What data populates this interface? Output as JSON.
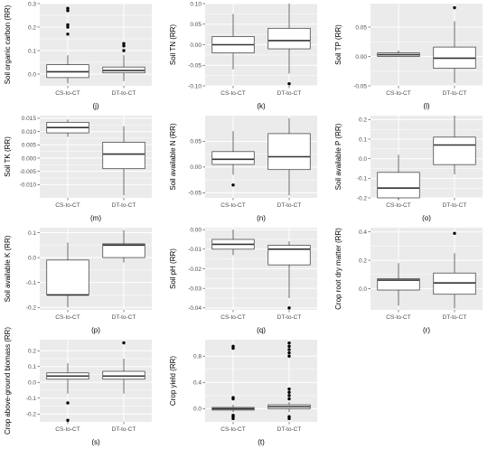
{
  "figure": {
    "background": "#ffffff",
    "panel_background": "#ebebeb",
    "grid_color": "#ffffff",
    "box_fill": "#ffffff",
    "box_stroke": "#333333"
  },
  "chart_data": [
    {
      "type": "boxplot",
      "panel_label": "(j)",
      "ylabel": "Soil organic carbon (RR)",
      "categories": [
        "CS-to-CT",
        "DT-to-CT"
      ],
      "ylim": [
        -0.05,
        0.3
      ],
      "yticks": [
        0.0,
        0.1,
        0.2,
        0.3
      ],
      "ytick_labels": [
        "0.0",
        "0.1",
        "0.2",
        "0.3"
      ],
      "series": [
        {
          "category": "CS-to-CT",
          "whisker_low": -0.04,
          "q1": -0.015,
          "median": 0.01,
          "q3": 0.04,
          "whisker_high": 0.08,
          "outliers": [
            0.17,
            0.2,
            0.21,
            0.27,
            0.28
          ]
        },
        {
          "category": "DT-to-CT",
          "whisker_low": -0.03,
          "q1": 0.005,
          "median": 0.015,
          "q3": 0.03,
          "whisker_high": 0.08,
          "outliers": [
            0.1,
            0.12,
            0.13
          ]
        }
      ]
    },
    {
      "type": "boxplot",
      "panel_label": "(k)",
      "ylabel": "Soil TN (RR)",
      "categories": [
        "CS-to-CT",
        "DT-to-CT"
      ],
      "ylim": [
        -0.1,
        0.1
      ],
      "yticks": [
        -0.1,
        -0.05,
        0.0,
        0.05,
        0.1
      ],
      "ytick_labels": [
        "-0.10",
        "-0.05",
        "0.00",
        "0.05",
        "0.10"
      ],
      "series": [
        {
          "category": "CS-to-CT",
          "whisker_low": -0.06,
          "q1": -0.02,
          "median": 0.0,
          "q3": 0.02,
          "whisker_high": 0.075,
          "outliers": []
        },
        {
          "category": "DT-to-CT",
          "whisker_low": -0.07,
          "q1": -0.01,
          "median": 0.01,
          "q3": 0.04,
          "whisker_high": 0.1,
          "outliers": [
            -0.095
          ]
        }
      ]
    },
    {
      "type": "boxplot",
      "panel_label": "(l)",
      "ylabel": "Soil TP (RR)",
      "categories": [
        "CS-to-CT",
        "DT-to-CT"
      ],
      "ylim": [
        -0.05,
        0.09
      ],
      "yticks": [
        -0.05,
        0.0,
        0.05
      ],
      "ytick_labels": [
        "-0.05",
        "0.00",
        "0.05"
      ],
      "series": [
        {
          "category": "CS-to-CT",
          "whisker_low": 0.0,
          "q1": 0.0,
          "median": 0.003,
          "q3": 0.006,
          "whisker_high": 0.01,
          "outliers": []
        },
        {
          "category": "DT-to-CT",
          "whisker_low": -0.045,
          "q1": -0.02,
          "median": -0.003,
          "q3": 0.016,
          "whisker_high": 0.06,
          "outliers": [
            0.083
          ]
        }
      ]
    },
    {
      "type": "boxplot",
      "panel_label": "(m)",
      "ylabel": "Soil TK (RR)",
      "categories": [
        "CS-to-CT",
        "DT-to-CT"
      ],
      "ylim": [
        -0.015,
        0.016
      ],
      "yticks": [
        -0.01,
        -0.005,
        0.0,
        0.005,
        0.01,
        0.015
      ],
      "ytick_labels": [
        "-0.010",
        "-0.005",
        "0.000",
        "0.005",
        "0.010",
        "0.015"
      ],
      "series": [
        {
          "category": "CS-to-CT",
          "whisker_low": 0.008,
          "q1": 0.0095,
          "median": 0.0115,
          "q3": 0.0135,
          "whisker_high": 0.0145,
          "outliers": []
        },
        {
          "category": "DT-to-CT",
          "whisker_low": -0.014,
          "q1": -0.004,
          "median": 0.0015,
          "q3": 0.006,
          "whisker_high": 0.012,
          "outliers": []
        }
      ]
    },
    {
      "type": "boxplot",
      "panel_label": "(n)",
      "ylabel": "Soil available N (RR)",
      "categories": [
        "CS-to-CT",
        "DT-to-CT"
      ],
      "ylim": [
        -0.06,
        0.1
      ],
      "yticks": [
        -0.05,
        0.0,
        0.05
      ],
      "ytick_labels": [
        "-0.05",
        "0.00",
        "0.05"
      ],
      "series": [
        {
          "category": "CS-to-CT",
          "whisker_low": -0.015,
          "q1": 0.005,
          "median": 0.015,
          "q3": 0.03,
          "whisker_high": 0.07,
          "outliers": [
            -0.035
          ]
        },
        {
          "category": "DT-to-CT",
          "whisker_low": -0.055,
          "q1": -0.005,
          "median": 0.02,
          "q3": 0.065,
          "whisker_high": 0.095,
          "outliers": []
        }
      ]
    },
    {
      "type": "boxplot",
      "panel_label": "(o)",
      "ylabel": "Soil available P (RR)",
      "categories": [
        "CS-to-CT",
        "DT-to-CT"
      ],
      "ylim": [
        -0.2,
        0.22
      ],
      "yticks": [
        -0.2,
        -0.1,
        0.0,
        0.1,
        0.2
      ],
      "ytick_labels": [
        "-0.2",
        "-0.1",
        "0.0",
        "0.1",
        "0.2"
      ],
      "series": [
        {
          "category": "CS-to-CT",
          "whisker_low": -0.21,
          "q1": -0.2,
          "median": -0.15,
          "q3": -0.07,
          "whisker_high": 0.02,
          "outliers": []
        },
        {
          "category": "DT-to-CT",
          "whisker_low": -0.08,
          "q1": -0.03,
          "median": 0.07,
          "q3": 0.11,
          "whisker_high": 0.22,
          "outliers": []
        }
      ]
    },
    {
      "type": "boxplot",
      "panel_label": "(p)",
      "ylabel": "Soil available K (RR)",
      "categories": [
        "CS-to-CT",
        "DT-to-CT"
      ],
      "ylim": [
        -0.21,
        0.12
      ],
      "yticks": [
        -0.2,
        -0.1,
        0.0,
        0.1
      ],
      "ytick_labels": [
        "-0.2",
        "-0.1",
        "0.0",
        "0.1"
      ],
      "series": [
        {
          "category": "CS-to-CT",
          "whisker_low": -0.2,
          "q1": -0.15,
          "median": -0.15,
          "q3": -0.01,
          "whisker_high": 0.06,
          "outliers": []
        },
        {
          "category": "DT-to-CT",
          "whisker_low": -0.02,
          "q1": 0.0,
          "median": 0.05,
          "q3": 0.055,
          "whisker_high": 0.11,
          "outliers": []
        }
      ]
    },
    {
      "type": "boxplot",
      "panel_label": "(q)",
      "ylabel": "Soil pH (RR)",
      "categories": [
        "CS-to-CT",
        "DT-to-CT"
      ],
      "ylim": [
        -0.041,
        0.001
      ],
      "yticks": [
        -0.04,
        -0.03,
        -0.02,
        -0.01,
        0.0
      ],
      "ytick_labels": [
        "-0.04",
        "-0.03",
        "-0.02",
        "-0.01",
        "0.00"
      ],
      "series": [
        {
          "category": "CS-to-CT",
          "whisker_low": -0.013,
          "q1": -0.01,
          "median": -0.0075,
          "q3": -0.005,
          "whisker_high": 0.0,
          "outliers": []
        },
        {
          "category": "DT-to-CT",
          "whisker_low": -0.035,
          "q1": -0.018,
          "median": -0.01,
          "q3": -0.008,
          "whisker_high": -0.006,
          "outliers": [
            -0.04
          ]
        }
      ]
    },
    {
      "type": "boxplot",
      "panel_label": "(r)",
      "ylabel": "Crop root dry matter (RR)",
      "categories": [
        "CS-to-CT",
        "DT-to-CT"
      ],
      "ylim": [
        -0.15,
        0.43
      ],
      "yticks": [
        0.0,
        0.2,
        0.4
      ],
      "ytick_labels": [
        "0.0",
        "0.2",
        "0.4"
      ],
      "series": [
        {
          "category": "CS-to-CT",
          "whisker_low": -0.12,
          "q1": -0.01,
          "median": 0.06,
          "q3": 0.07,
          "whisker_high": 0.18,
          "outliers": []
        },
        {
          "category": "DT-to-CT",
          "whisker_low": -0.14,
          "q1": -0.04,
          "median": 0.04,
          "q3": 0.11,
          "whisker_high": 0.25,
          "outliers": [
            0.39
          ]
        }
      ]
    },
    {
      "type": "boxplot",
      "panel_label": "(s)",
      "ylabel": "Crop above-ground biomass (RR)",
      "categories": [
        "CS-to-CT",
        "DT-to-CT"
      ],
      "ylim": [
        -0.25,
        0.27
      ],
      "yticks": [
        -0.2,
        -0.1,
        0.0,
        0.1,
        0.2
      ],
      "ytick_labels": [
        "-0.2",
        "-0.1",
        "0.0",
        "0.1",
        "0.2"
      ],
      "series": [
        {
          "category": "CS-to-CT",
          "whisker_low": -0.07,
          "q1": 0.02,
          "median": 0.04,
          "q3": 0.06,
          "whisker_high": 0.12,
          "outliers": [
            -0.13,
            -0.24
          ]
        },
        {
          "category": "DT-to-CT",
          "whisker_low": -0.07,
          "q1": 0.02,
          "median": 0.04,
          "q3": 0.07,
          "whisker_high": 0.15,
          "outliers": [
            0.25
          ]
        }
      ]
    },
    {
      "type": "boxplot",
      "panel_label": "(t)",
      "ylabel": "Crop yield (RR)",
      "categories": [
        "CS-to-CT",
        "DT-to-CT"
      ],
      "ylim": [
        -0.2,
        1.05
      ],
      "yticks": [
        0.0,
        0.4,
        0.8
      ],
      "ytick_labels": [
        "0.0",
        "0.4",
        "0.8"
      ],
      "series": [
        {
          "category": "CS-to-CT",
          "whisker_low": -0.05,
          "q1": -0.02,
          "median": 0.0,
          "q3": 0.02,
          "whisker_high": 0.06,
          "outliers": [
            0.15,
            0.17,
            -0.1,
            -0.12,
            -0.15,
            0.92,
            0.95
          ]
        },
        {
          "category": "DT-to-CT",
          "whisker_low": -0.05,
          "q1": 0.0,
          "median": 0.03,
          "q3": 0.06,
          "whisker_high": 0.1,
          "outliers": [
            0.15,
            0.2,
            0.25,
            0.3,
            -0.12,
            -0.15,
            0.8,
            0.85,
            0.9,
            0.95,
            1.0
          ]
        }
      ]
    }
  ]
}
